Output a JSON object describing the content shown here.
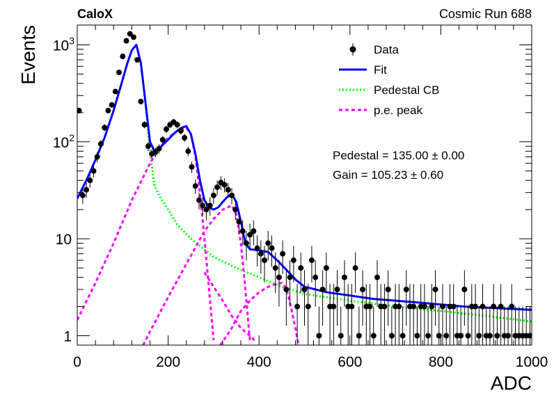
{
  "header": {
    "left_label": "CaloX",
    "right_label": "Cosmic Run 688"
  },
  "legend": {
    "items": [
      {
        "label": "Data",
        "kind": "marker",
        "color": "#000000"
      },
      {
        "label": "Fit",
        "kind": "line",
        "color": "#0000ff"
      },
      {
        "label": "Pedestal CB",
        "kind": "dotted",
        "color": "#00ff00"
      },
      {
        "label": "p.e. peak",
        "kind": "dashed",
        "color": "#ff00ff"
      }
    ]
  },
  "fit_results": {
    "pedestal": "Pedestal = 135.00 ± 0.00",
    "gain": "Gain = 105.23 ± 0.60"
  },
  "colors": {
    "data": "#000000",
    "fit": "#0000ff",
    "pedestal": "#00ff00",
    "pe_peak": "#ff00ff"
  },
  "chart_data": {
    "type": "scatter",
    "xlabel": "ADC",
    "ylabel": "Events",
    "xlim": [
      0,
      1000
    ],
    "ylim": [
      0.8,
      1600
    ],
    "yscale": "log",
    "grid": false,
    "legend_position": "top-right",
    "x_ticks": [
      0,
      200,
      400,
      600,
      800,
      1000
    ],
    "y_tick_labels": [
      {
        "value": 1,
        "label": "1"
      },
      {
        "value": 10,
        "label": "10"
      },
      {
        "value": 100,
        "label": "10",
        "exp": "2"
      },
      {
        "value": 1000,
        "label": "10",
        "exp": "3"
      }
    ],
    "series": [
      {
        "name": "Data",
        "style": "markers-with-errors",
        "x": [
          4,
          12,
          20,
          28,
          36,
          44,
          52,
          60,
          68,
          76,
          84,
          92,
          100,
          108,
          116,
          124,
          132,
          140,
          148,
          156,
          164,
          172,
          180,
          188,
          196,
          204,
          212,
          220,
          228,
          236,
          244,
          252,
          260,
          268,
          276,
          284,
          292,
          300,
          308,
          316,
          324,
          332,
          340,
          348,
          356,
          364,
          372,
          380,
          388,
          396,
          404,
          412,
          420,
          428,
          436,
          444,
          452,
          460,
          468,
          476,
          484,
          492,
          500,
          508,
          516,
          524,
          532,
          540,
          548,
          556,
          564,
          572,
          580,
          588,
          596,
          604,
          612,
          620,
          628,
          636,
          644,
          652,
          660,
          668,
          676,
          684,
          692,
          700,
          708,
          716,
          724,
          732,
          740,
          748,
          756,
          764,
          772,
          780,
          788,
          796,
          804,
          812,
          820,
          828,
          836,
          844,
          852,
          860,
          868,
          876,
          884,
          892,
          900,
          908,
          916,
          924,
          932,
          940,
          948,
          956,
          964,
          972,
          980,
          988,
          996
        ],
        "y": [
          210,
          28,
          32,
          40,
          50,
          70,
          95,
          140,
          210,
          240,
          330,
          520,
          760,
          1100,
          1300,
          1200,
          700,
          260,
          150,
          90,
          75,
          78,
          85,
          105,
          135,
          150,
          160,
          150,
          130,
          110,
          80,
          55,
          35,
          25,
          22,
          20,
          22,
          28,
          34,
          38,
          36,
          32,
          28,
          20,
          15,
          12,
          9,
          11,
          12,
          8,
          7,
          6,
          9,
          8,
          5,
          4,
          7,
          3,
          4,
          6,
          2,
          5,
          3,
          2,
          6,
          4,
          1,
          3,
          5,
          2,
          2,
          3,
          1,
          4,
          2,
          2,
          5,
          1,
          3,
          2,
          2,
          1,
          4,
          2,
          2,
          3,
          1,
          2,
          2,
          1,
          3,
          2,
          2,
          1,
          2,
          2,
          1,
          2,
          3,
          1,
          2,
          1,
          2,
          2,
          1,
          1,
          3,
          1,
          2,
          2,
          1,
          2,
          1,
          1,
          2,
          1,
          2,
          1,
          1,
          2,
          1,
          1,
          1,
          1,
          1
        ]
      },
      {
        "name": "Fit",
        "style": "solid",
        "x": [
          0,
          20,
          40,
          60,
          80,
          100,
          110,
          120,
          130,
          140,
          150,
          160,
          170,
          180,
          190,
          200,
          210,
          220,
          230,
          240,
          250,
          260,
          270,
          280,
          290,
          300,
          310,
          320,
          330,
          340,
          350,
          360,
          370,
          380,
          400,
          420,
          440,
          460,
          480,
          500,
          550,
          600,
          650,
          700,
          750,
          800,
          850,
          900,
          950,
          1000
        ],
        "y": [
          26,
          40,
          65,
          110,
          210,
          440,
          640,
          880,
          1000,
          650,
          260,
          100,
          80,
          85,
          95,
          105,
          118,
          130,
          140,
          145,
          120,
          75,
          40,
          25,
          21,
          20,
          21,
          24,
          27,
          29,
          24,
          15,
          9,
          7.8,
          7.6,
          7.3,
          6.0,
          4.8,
          3.8,
          3.2,
          2.8,
          2.6,
          2.4,
          2.3,
          2.2,
          2.1,
          2.0,
          1.95,
          1.9,
          1.85
        ]
      },
      {
        "name": "Pedestal CB",
        "style": "dotted",
        "x": [
          0,
          20,
          40,
          60,
          80,
          100,
          110,
          120,
          130,
          140,
          150,
          160,
          170,
          180,
          200,
          220,
          250,
          300,
          350,
          400,
          450,
          500,
          600,
          700,
          800,
          900,
          1000
        ],
        "y": [
          26,
          40,
          65,
          110,
          210,
          440,
          640,
          880,
          1000,
          650,
          250,
          80,
          35,
          28,
          20,
          14,
          10,
          6.5,
          5.0,
          4.0,
          3.2,
          2.7,
          2.3,
          2.0,
          1.8,
          1.6,
          1.4
        ]
      },
      {
        "name": "p.e. peak (1)",
        "style": "dashed",
        "x": [
          0,
          40,
          80,
          120,
          160,
          180,
          200,
          220,
          240,
          250,
          260,
          270,
          280,
          290,
          300
        ],
        "y": [
          1.45,
          3.5,
          9,
          25,
          60,
          85,
          110,
          130,
          140,
          120,
          70,
          30,
          10,
          3,
          0.9
        ]
      },
      {
        "name": "p.e. peak (2)",
        "style": "dashed",
        "x": [
          145,
          160,
          200,
          240,
          280,
          300,
          320,
          340,
          350,
          360,
          370,
          380
        ],
        "y": [
          0.8,
          1.1,
          2.5,
          5.5,
          12,
          16,
          20,
          22,
          18,
          9,
          3,
          0.9
        ]
      },
      {
        "name": "p.e. peak (3)",
        "style": "dashed",
        "x": [
          315,
          340,
          360,
          380,
          400,
          420,
          440,
          450,
          460,
          470,
          480,
          487
        ],
        "y": [
          0.8,
          1.2,
          1.8,
          2.3,
          2.8,
          3.2,
          3.45,
          3.5,
          3.1,
          2.0,
          1.2,
          0.8
        ]
      },
      {
        "name": "p.e. peak (tail)",
        "style": "dashed",
        "x": [
          280,
          300,
          320,
          340,
          360,
          380,
          390
        ],
        "y": [
          4.5,
          3.2,
          2.3,
          1.6,
          1.2,
          1.0,
          0.9
        ]
      }
    ]
  }
}
